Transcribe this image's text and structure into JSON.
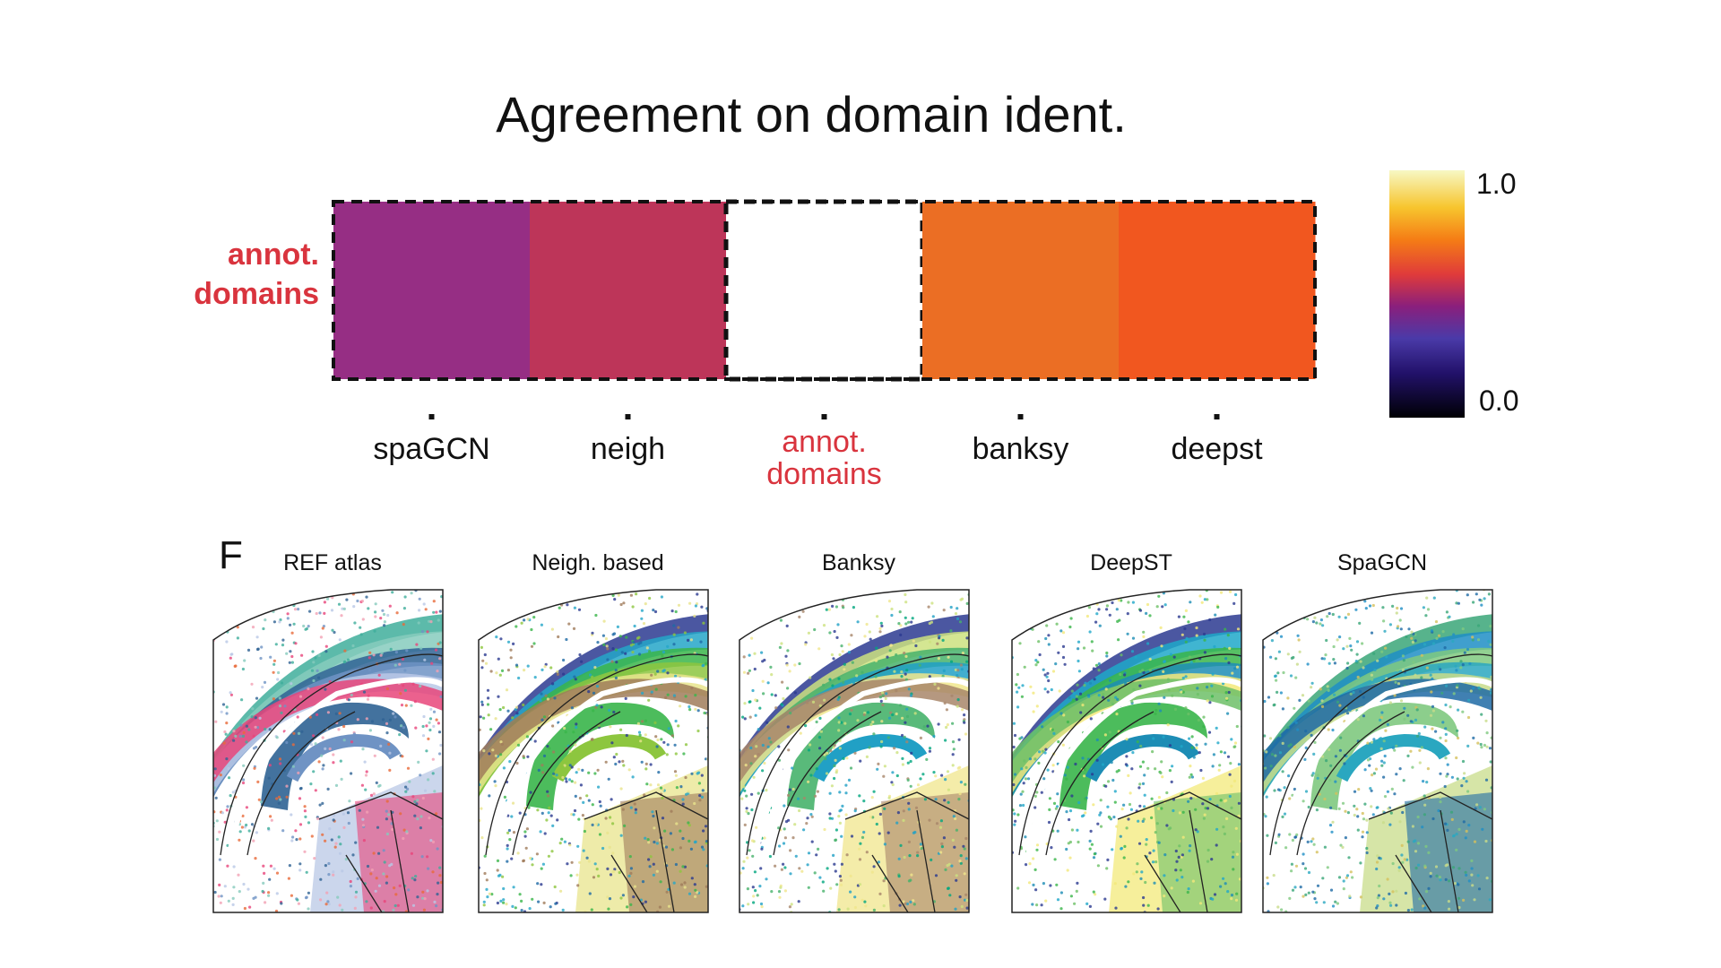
{
  "chart_data": {
    "type": "heatmap",
    "title": "Agreement on domain ident.",
    "row_labels": [
      "annot. domains"
    ],
    "categories": [
      "spaGCN",
      "neigh",
      "annot. domains",
      "banksy",
      "deepst"
    ],
    "values": [
      0.45,
      0.55,
      null,
      0.67,
      0.7
    ],
    "colors": [
      "#962e84",
      "#bd3559",
      "#ffffff",
      "#eb6e24",
      "#f1571f"
    ],
    "highlight_color": "#d9343e",
    "highlighted_labels": [
      "annot. domains"
    ],
    "colorbar": {
      "min_label": "0.0",
      "max_label": "1.0",
      "range": [
        0.0,
        1.0
      ],
      "colormap": "inferno-like"
    },
    "legend_placement": "right"
  },
  "figure_panel": {
    "letter": "F",
    "panels": [
      {
        "title": "REF atlas",
        "palette": [
          "#3fae9b",
          "#86cbbd",
          "#2f6394",
          "#6f93c4",
          "#b9c8e6",
          "#e8457a",
          "#f3a1b4",
          "#e96a3a"
        ]
      },
      {
        "title": "Neigh. based",
        "palette": [
          "#2b3990",
          "#24a6c8",
          "#39b54a",
          "#8dc63f",
          "#e8e48c",
          "#a07c5b",
          "#1e6aa5"
        ]
      },
      {
        "title": "Banksy",
        "palette": [
          "#2b3990",
          "#cde27f",
          "#47b26b",
          "#21a0c5",
          "#f0e68c",
          "#a8866a",
          "#00a67e"
        ]
      },
      {
        "title": "DeepST",
        "palette": [
          "#2b3990",
          "#1fa8c9",
          "#39b54a",
          "#1d8db5",
          "#f3e97a",
          "#6dc067"
        ]
      },
      {
        "title": "SpaGCN",
        "palette": [
          "#3aa678",
          "#1f8ec6",
          "#7fc97f",
          "#2aa7c0",
          "#c8dc8a",
          "#1e6aa5",
          "#d4c15c"
        ]
      }
    ]
  }
}
